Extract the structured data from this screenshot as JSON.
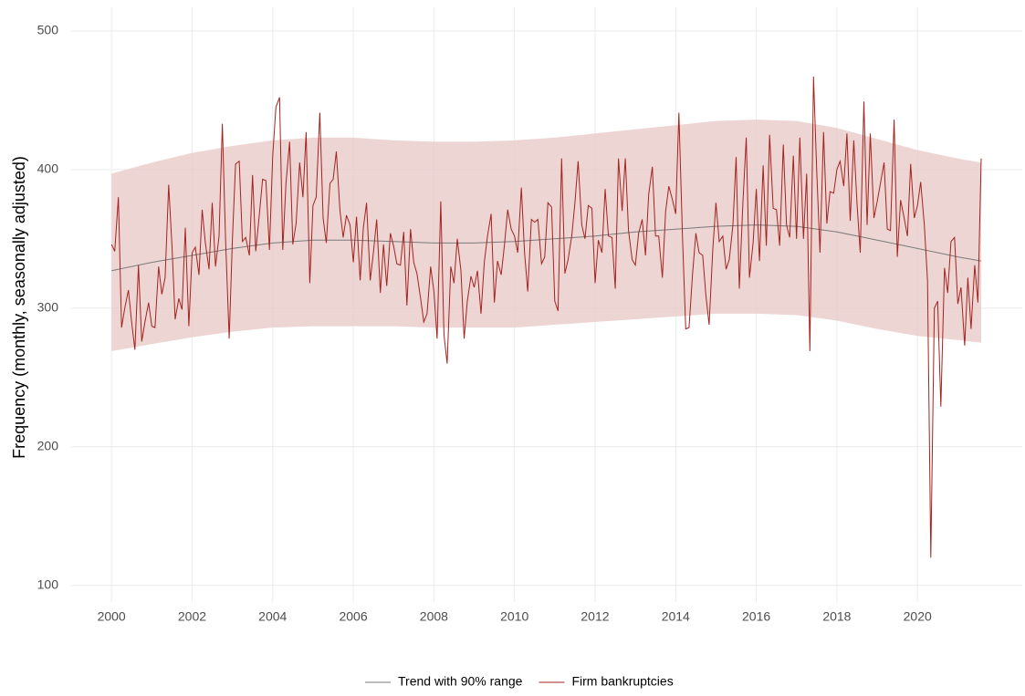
{
  "chart_data": {
    "type": "line",
    "ylabel": "Frequency (monthly, seasonally adjusted)",
    "xlim": [
      1999,
      2022.6
    ],
    "ylim": [
      88,
      517
    ],
    "xticks": [
      2000,
      2002,
      2004,
      2006,
      2008,
      2010,
      2012,
      2014,
      2016,
      2018,
      2020
    ],
    "yticks": [
      100,
      200,
      300,
      400,
      500
    ],
    "grid": true,
    "legend": "bottom",
    "series": [
      {
        "name": "Trend with 90% range",
        "color": "#7a7a7a",
        "band_color": "#e9cbc9",
        "x": [
          2000,
          2001,
          2002,
          2003,
          2004,
          2005,
          2006,
          2007,
          2008,
          2009,
          2010,
          2011,
          2012,
          2013,
          2014,
          2015,
          2016,
          2017,
          2018,
          2019,
          2020,
          2021,
          2021.58
        ],
        "values": [
          327,
          333,
          338,
          343,
          347,
          349,
          349,
          348,
          347,
          347,
          348,
          350,
          352,
          355,
          357,
          359,
          360,
          359,
          355,
          349,
          343,
          337,
          334
        ],
        "upper": [
          397,
          405,
          412,
          417,
          421,
          423,
          423,
          421,
          420,
          420,
          421,
          423,
          426,
          429,
          432,
          435,
          436,
          435,
          430,
          422,
          414,
          408,
          405
        ],
        "lower": [
          269,
          274,
          279,
          283,
          286,
          287,
          287,
          287,
          286,
          286,
          286,
          288,
          290,
          292,
          294,
          296,
          296,
          295,
          291,
          285,
          280,
          277,
          275
        ]
      },
      {
        "name": "Firm bankruptcies",
        "color": "#a3231f",
        "x": [
          2000,
          2000.08,
          2000.17,
          2000.25,
          2000.33,
          2000.42,
          2000.5,
          2000.58,
          2000.67,
          2000.75,
          2000.83,
          2000.92,
          2001,
          2001.08,
          2001.17,
          2001.25,
          2001.33,
          2001.42,
          2001.5,
          2001.58,
          2001.67,
          2001.75,
          2001.83,
          2001.92,
          2002,
          2002.08,
          2002.17,
          2002.25,
          2002.33,
          2002.42,
          2002.5,
          2002.58,
          2002.67,
          2002.75,
          2002.83,
          2002.92,
          2003,
          2003.08,
          2003.17,
          2003.25,
          2003.33,
          2003.42,
          2003.5,
          2003.58,
          2003.67,
          2003.75,
          2003.83,
          2003.92,
          2004,
          2004.08,
          2004.17,
          2004.25,
          2004.33,
          2004.42,
          2004.5,
          2004.58,
          2004.67,
          2004.75,
          2004.83,
          2004.92,
          2005,
          2005.08,
          2005.17,
          2005.25,
          2005.33,
          2005.42,
          2005.5,
          2005.58,
          2005.67,
          2005.75,
          2005.83,
          2005.92,
          2006,
          2006.08,
          2006.17,
          2006.25,
          2006.33,
          2006.42,
          2006.5,
          2006.58,
          2006.67,
          2006.75,
          2006.83,
          2006.92,
          2007,
          2007.08,
          2007.17,
          2007.25,
          2007.33,
          2007.42,
          2007.5,
          2007.58,
          2007.67,
          2007.75,
          2007.83,
          2007.92,
          2008,
          2008.08,
          2008.17,
          2008.25,
          2008.33,
          2008.42,
          2008.5,
          2008.58,
          2008.67,
          2008.75,
          2008.83,
          2008.92,
          2009,
          2009.08,
          2009.17,
          2009.25,
          2009.33,
          2009.42,
          2009.5,
          2009.58,
          2009.67,
          2009.75,
          2009.83,
          2009.92,
          2010,
          2010.08,
          2010.17,
          2010.25,
          2010.33,
          2010.42,
          2010.5,
          2010.58,
          2010.67,
          2010.75,
          2010.83,
          2010.92,
          2011,
          2011.08,
          2011.17,
          2011.25,
          2011.33,
          2011.42,
          2011.5,
          2011.58,
          2011.67,
          2011.75,
          2011.83,
          2011.92,
          2012,
          2012.08,
          2012.17,
          2012.25,
          2012.33,
          2012.42,
          2012.5,
          2012.58,
          2012.67,
          2012.75,
          2012.83,
          2012.92,
          2013,
          2013.08,
          2013.17,
          2013.25,
          2013.33,
          2013.42,
          2013.5,
          2013.58,
          2013.67,
          2013.75,
          2013.83,
          2013.92,
          2014,
          2014.08,
          2014.17,
          2014.25,
          2014.33,
          2014.42,
          2014.5,
          2014.58,
          2014.67,
          2014.75,
          2014.83,
          2014.92,
          2015,
          2015.08,
          2015.17,
          2015.25,
          2015.33,
          2015.42,
          2015.5,
          2015.58,
          2015.67,
          2015.75,
          2015.83,
          2015.92,
          2016,
          2016.08,
          2016.17,
          2016.25,
          2016.33,
          2016.42,
          2016.5,
          2016.58,
          2016.67,
          2016.75,
          2016.83,
          2016.92,
          2017,
          2017.08,
          2017.17,
          2017.25,
          2017.33,
          2017.42,
          2017.5,
          2017.58,
          2017.67,
          2017.75,
          2017.83,
          2017.92,
          2018,
          2018.08,
          2018.17,
          2018.25,
          2018.33,
          2018.42,
          2018.5,
          2018.58,
          2018.67,
          2018.75,
          2018.83,
          2018.92,
          2019,
          2019.08,
          2019.17,
          2019.25,
          2019.33,
          2019.42,
          2019.5,
          2019.58,
          2019.67,
          2019.75,
          2019.83,
          2019.92,
          2020,
          2020.08,
          2020.17,
          2020.25,
          2020.33,
          2020.42,
          2020.5,
          2020.58,
          2020.67,
          2020.75,
          2020.83,
          2020.92,
          2021,
          2021.08,
          2021.17,
          2021.25,
          2021.33,
          2021.42,
          2021.5,
          2021.58
        ],
        "values": [
          346,
          341,
          380,
          286,
          300,
          313,
          290,
          270,
          331,
          276,
          290,
          304,
          287,
          286,
          330,
          310,
          322,
          389,
          345,
          292,
          307,
          299,
          358,
          287,
          340,
          344,
          324,
          371,
          347,
          328,
          376,
          330,
          352,
          433,
          350,
          278,
          349,
          404,
          406,
          348,
          351,
          338,
          396,
          341,
          368,
          393,
          392,
          342,
          410,
          445,
          452,
          342,
          390,
          420,
          346,
          361,
          405,
          380,
          427,
          318,
          374,
          380,
          441,
          365,
          347,
          390,
          393,
          413,
          370,
          351,
          367,
          360,
          333,
          366,
          320,
          358,
          376,
          320,
          340,
          364,
          311,
          346,
          316,
          354,
          345,
          332,
          331,
          355,
          302,
          357,
          333,
          325,
          307,
          290,
          296,
          330,
          312,
          278,
          377,
          281,
          260,
          330,
          318,
          350,
          327,
          278,
          305,
          323,
          315,
          327,
          296,
          333,
          352,
          368,
          304,
          334,
          324,
          345,
          371,
          357,
          352,
          340,
          387,
          340,
          312,
          364,
          362,
          364,
          332,
          337,
          376,
          373,
          305,
          298,
          408,
          325,
          335,
          352,
          376,
          406,
          360,
          350,
          374,
          372,
          318,
          349,
          340,
          386,
          352,
          351,
          314,
          408,
          370,
          408,
          356,
          335,
          331,
          354,
          364,
          338,
          382,
          402,
          352,
          352,
          322,
          370,
          388,
          378,
          368,
          441,
          350,
          285,
          286,
          325,
          354,
          340,
          338,
          309,
          288,
          342,
          376,
          348,
          352,
          328,
          335,
          360,
          409,
          314,
          377,
          423,
          322,
          347,
          386,
          334,
          403,
          345,
          425,
          372,
          371,
          345,
          418,
          360,
          351,
          410,
          350,
          423,
          350,
          397,
          269,
          467,
          399,
          340,
          427,
          361,
          384,
          383,
          400,
          406,
          388,
          426,
          363,
          421,
          375,
          340,
          449,
          360,
          426,
          365,
          377,
          390,
          405,
          357,
          356,
          436,
          337,
          378,
          365,
          352,
          404,
          365,
          374,
          391,
          360,
          320,
          120,
          300,
          305,
          229,
          329,
          311,
          348,
          351,
          303,
          315,
          273,
          322,
          285,
          331,
          304,
          408
        ]
      }
    ]
  }
}
